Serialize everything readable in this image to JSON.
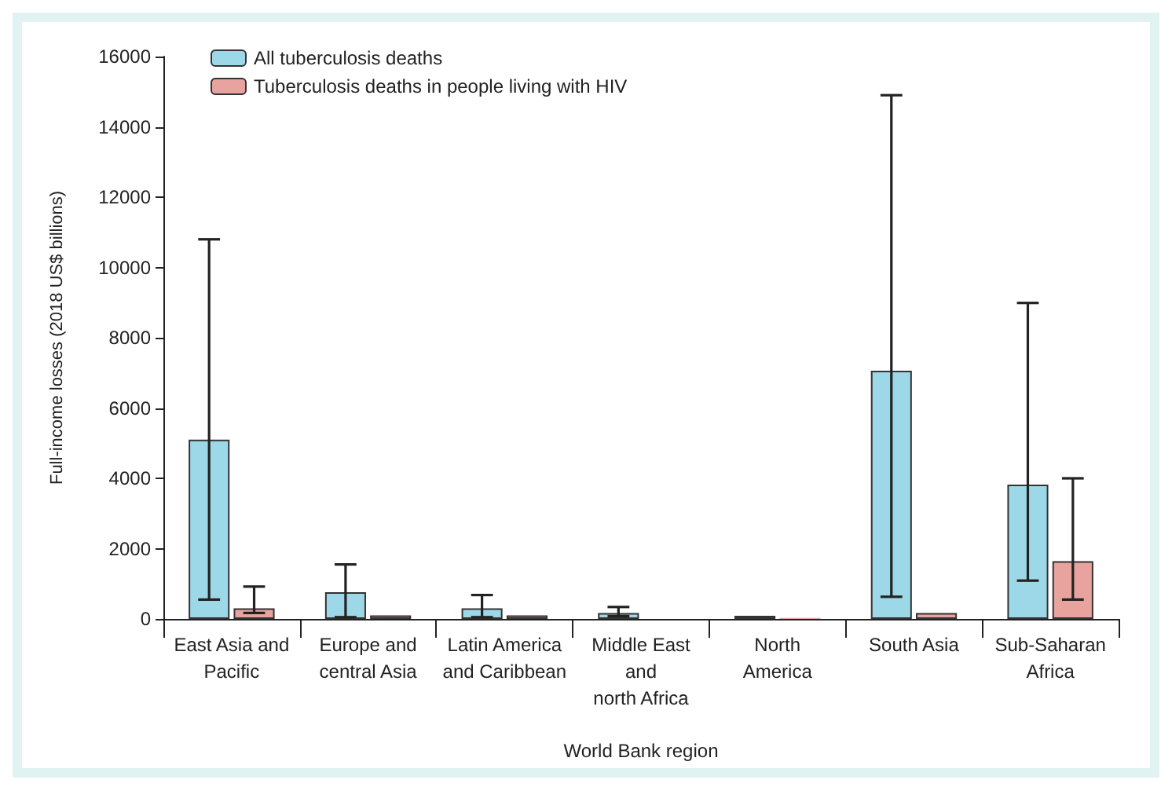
{
  "chart_data": {
    "type": "bar",
    "xlabel": "World Bank region",
    "ylabel": "Full-income losses (2018 US$ billions)",
    "categories": [
      "East Asia and\nPacific",
      "Europe and\ncentral Asia",
      "Latin America\nand Caribbean",
      "Middle East\nand\nnorth Africa",
      "North\nAmerica",
      "South Asia",
      "Sub-Saharan\nAfrica"
    ],
    "series": [
      {
        "name": "All tuberculosis deaths",
        "color": "#9dd8e8",
        "values": [
          5100,
          760,
          300,
          170,
          90,
          7060,
          3820
        ],
        "errors": [
          [
            550,
            10800
          ],
          [
            50,
            1550
          ],
          [
            50,
            680
          ],
          [
            80,
            340
          ],
          null,
          [
            630,
            14900
          ],
          [
            1090,
            8990
          ]
        ]
      },
      {
        "name": "Tuberculosis deaths in people living with HIV",
        "color": "#e8a39e",
        "values": [
          300,
          100,
          100,
          null,
          30,
          170,
          1640
        ],
        "errors": [
          [
            170,
            920
          ],
          null,
          null,
          null,
          null,
          null,
          [
            550,
            4000
          ]
        ]
      }
    ],
    "ylim": [
      0,
      16000
    ],
    "yticks": [
      0,
      2000,
      4000,
      6000,
      8000,
      10000,
      12000,
      14000,
      16000
    ],
    "grid": false,
    "legend": "top left"
  }
}
